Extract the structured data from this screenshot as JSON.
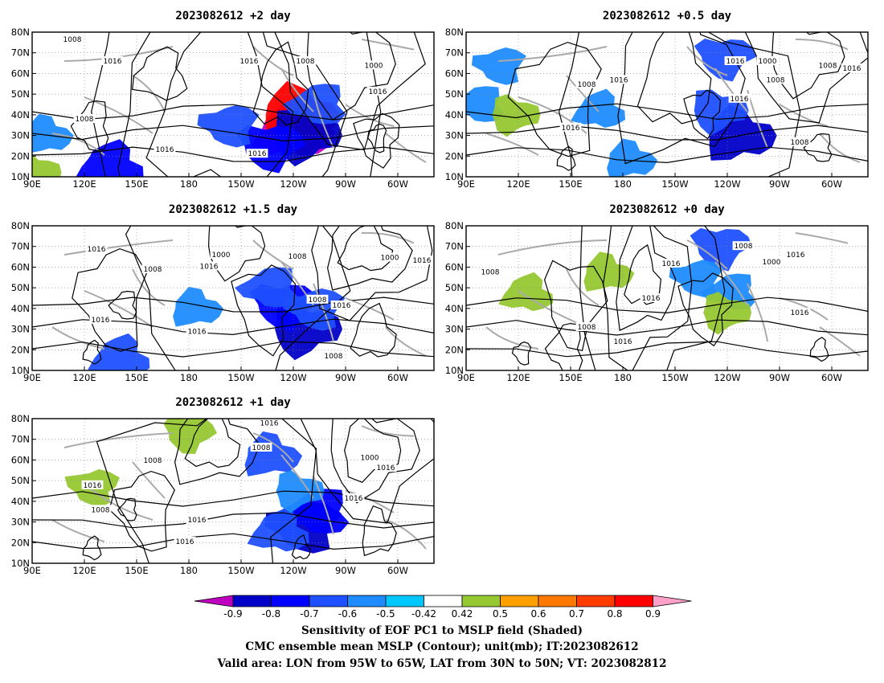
{
  "chart_data": [
    {
      "type": "contour-map",
      "title": "2023082612 +2 day",
      "x_ticks": [
        "90E",
        "120E",
        "150E",
        "180",
        "150W",
        "120W",
        "90W",
        "60W"
      ],
      "y_ticks": [
        "10N",
        "20N",
        "30N",
        "40N",
        "50N",
        "60N",
        "70N",
        "80N"
      ],
      "contour_labels": [
        "1008",
        "1016",
        "1016",
        "1008",
        "1000",
        "1016",
        "1008",
        "1016",
        "1016"
      ],
      "shaded_regions": [
        {
          "lon": -78,
          "lat": 32,
          "value": -0.9
        },
        {
          "lon": -75,
          "lat": 40,
          "value": 0.9
        },
        {
          "lon": -70,
          "lat": 30,
          "value": -0.8
        },
        {
          "lon": -95,
          "lat": 25,
          "value": -0.7
        },
        {
          "lon": -125,
          "lat": 35,
          "value": -0.6
        },
        {
          "lon": -60,
          "lat": 45,
          "value": -0.6
        },
        {
          "lon": 148,
          "lat": 15,
          "value": -0.7
        },
        {
          "lon": 100,
          "lat": 30,
          "value": -0.5
        },
        {
          "lon": 92,
          "lat": 12,
          "value": 0.5
        }
      ]
    },
    {
      "type": "contour-map",
      "title": "2023082612 +0.5 day",
      "x_ticks": [
        "90E",
        "120E",
        "150E",
        "180",
        "150W",
        "120W",
        "90W",
        "60W"
      ],
      "y_ticks": [
        "10N",
        "20N",
        "30N",
        "40N",
        "50N",
        "60N",
        "70N",
        "80N"
      ],
      "contour_labels": [
        "1008",
        "1016",
        "1016",
        "1008",
        "1000",
        "1016",
        "1008",
        "1016",
        "1016",
        "1008"
      ],
      "shaded_regions": [
        {
          "lon": -70,
          "lat": 30,
          "value": -0.8
        },
        {
          "lon": -85,
          "lat": 42,
          "value": -0.6
        },
        {
          "lon": -80,
          "lat": 68,
          "value": -0.6
        },
        {
          "lon": 115,
          "lat": 64,
          "value": -0.5
        },
        {
          "lon": 100,
          "lat": 45,
          "value": -0.5
        },
        {
          "lon": -172,
          "lat": 42,
          "value": -0.5
        },
        {
          "lon": -150,
          "lat": 18,
          "value": -0.5
        },
        {
          "lon": 125,
          "lat": 40,
          "value": 0.5
        }
      ]
    },
    {
      "type": "contour-map",
      "title": "2023082612 +1.5 day",
      "x_ticks": [
        "90E",
        "120E",
        "150E",
        "180",
        "150W",
        "120W",
        "90W",
        "60W"
      ],
      "y_ticks": [
        "10N",
        "20N",
        "30N",
        "40N",
        "50N",
        "60N",
        "70N",
        "80N"
      ],
      "contour_labels": [
        "1016",
        "1008",
        "1016",
        "1000",
        "1008",
        "1000",
        "1016",
        "1008",
        "1016",
        "1016",
        "1016",
        "1008"
      ],
      "shaded_regions": [
        {
          "lon": -70,
          "lat": 30,
          "value": -0.8
        },
        {
          "lon": -85,
          "lat": 42,
          "value": -0.7
        },
        {
          "lon": -62,
          "lat": 40,
          "value": -0.6
        },
        {
          "lon": -95,
          "lat": 50,
          "value": -0.6
        },
        {
          "lon": 155,
          "lat": 16,
          "value": -0.6
        },
        {
          "lon": -150,
          "lat": 40,
          "value": -0.5
        }
      ]
    },
    {
      "type": "contour-map",
      "title": "2023082612 +0 day",
      "x_ticks": [
        "90E",
        "120E",
        "150E",
        "180",
        "150W",
        "120W",
        "90W",
        "60W"
      ],
      "y_ticks": [
        "10N",
        "20N",
        "30N",
        "40N",
        "50N",
        "60N",
        "70N",
        "80N"
      ],
      "contour_labels": [
        "1008",
        "1016",
        "1000",
        "1008",
        "1016",
        "1016",
        "1008",
        "1016",
        "1016"
      ],
      "shaded_regions": [
        {
          "lon": -83,
          "lat": 70,
          "value": -0.6
        },
        {
          "lon": -100,
          "lat": 55,
          "value": -0.5
        },
        {
          "lon": -75,
          "lat": 48,
          "value": -0.5
        },
        {
          "lon": 135,
          "lat": 47,
          "value": 0.5
        },
        {
          "lon": -167,
          "lat": 57,
          "value": 0.5
        },
        {
          "lon": -80,
          "lat": 38,
          "value": 0.5
        }
      ]
    },
    {
      "type": "contour-map",
      "title": "2023082612 +1 day",
      "x_ticks": [
        "90E",
        "120E",
        "150E",
        "180",
        "150W",
        "120W",
        "90W",
        "60W"
      ],
      "y_ticks": [
        "10N",
        "20N",
        "30N",
        "40N",
        "50N",
        "60N",
        "70N",
        "80N"
      ],
      "contour_labels": [
        "1016",
        "1008",
        "1008",
        "1016",
        "1008",
        "1016",
        "1016",
        "1000",
        "1016",
        "1016"
      ],
      "shaded_regions": [
        {
          "lon": -70,
          "lat": 28,
          "value": -0.8
        },
        {
          "lon": -60,
          "lat": 35,
          "value": -0.7
        },
        {
          "lon": -88,
          "lat": 25,
          "value": -0.6
        },
        {
          "lon": -95,
          "lat": 62,
          "value": -0.6
        },
        {
          "lon": -75,
          "lat": 45,
          "value": -0.5
        },
        {
          "lon": -155,
          "lat": 73,
          "value": 0.5
        },
        {
          "lon": 135,
          "lat": 47,
          "value": 0.5
        }
      ]
    }
  ],
  "colorbar": {
    "tick_labels": [
      "-0.9",
      "-0.8",
      "-0.7",
      "-0.6",
      "-0.5",
      "-0.42",
      "0.42",
      "0.5",
      "0.6",
      "0.7",
      "0.8",
      "0.9"
    ],
    "colors": [
      "#c000c0",
      "#0000c8",
      "#0000ff",
      "#1e50ff",
      "#1e8cff",
      "#00c8ff",
      "#ffffff",
      "#96c832",
      "#ffa000",
      "#ff7800",
      "#ff3c00",
      "#ff0000",
      "#ffa0c8"
    ]
  },
  "footer": {
    "line1": "Sensitivity of EOF PC1 to MSLP field (Shaded)",
    "line2": "CMC ensemble mean MSLP (Contour); unit(mb); IT:2023082612",
    "line3": "Valid area: LON from 95W to 65W, LAT from 30N to 50N; VT: 2023082812"
  }
}
